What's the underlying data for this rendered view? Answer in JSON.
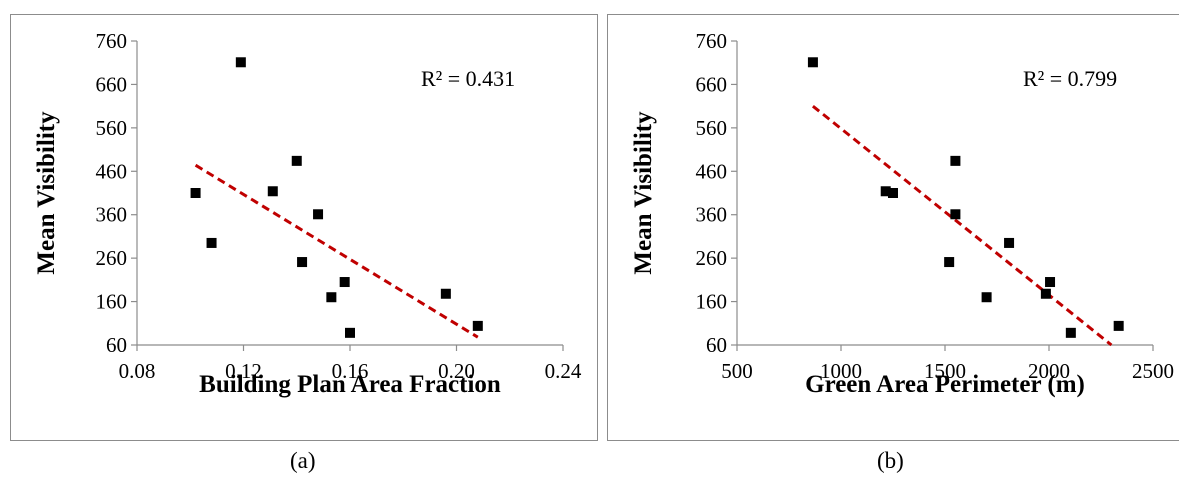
{
  "chart_data": [
    {
      "type": "scatter",
      "xlabel": "Building Plan Area Fraction",
      "ylabel": "Mean Visibility",
      "xlim": [
        0.08,
        0.24
      ],
      "ylim": [
        60,
        760
      ],
      "xticks": [
        "0.08",
        "0.12",
        "0.16",
        "0.20",
        "0.24"
      ],
      "yticks": [
        "760",
        "660",
        "560",
        "460",
        "360",
        "260",
        "160",
        "60"
      ],
      "grid": false,
      "annotation": "R² = 0.431",
      "points": [
        {
          "x": 0.102,
          "y": 410
        },
        {
          "x": 0.108,
          "y": 295
        },
        {
          "x": 0.119,
          "y": 711
        },
        {
          "x": 0.131,
          "y": 414
        },
        {
          "x": 0.14,
          "y": 484
        },
        {
          "x": 0.142,
          "y": 251
        },
        {
          "x": 0.148,
          "y": 361
        },
        {
          "x": 0.153,
          "y": 170
        },
        {
          "x": 0.158,
          "y": 205
        },
        {
          "x": 0.16,
          "y": 88
        },
        {
          "x": 0.196,
          "y": 178
        },
        {
          "x": 0.208,
          "y": 104
        }
      ],
      "trendline": {
        "x": [
          0.102,
          0.208
        ],
        "y": [
          474,
          78
        ]
      },
      "trendline_color": "#c00000",
      "marker_color": "#000000"
    },
    {
      "type": "scatter",
      "xlabel": "Green Area Perimeter (m)",
      "ylabel": "Mean Visibility",
      "xlim": [
        500,
        2500
      ],
      "ylim": [
        60,
        760
      ],
      "xticks": [
        "500",
        "1000",
        "1500",
        "2000",
        "2500"
      ],
      "yticks": [
        "760",
        "660",
        "560",
        "460",
        "360",
        "260",
        "160",
        "60"
      ],
      "grid": false,
      "annotation": "R² = 0.799",
      "points": [
        {
          "x": 865,
          "y": 711
        },
        {
          "x": 1215,
          "y": 414
        },
        {
          "x": 1250,
          "y": 410
        },
        {
          "x": 1550,
          "y": 484
        },
        {
          "x": 1550,
          "y": 361
        },
        {
          "x": 1520,
          "y": 251
        },
        {
          "x": 1700,
          "y": 170
        },
        {
          "x": 1808,
          "y": 295
        },
        {
          "x": 1985,
          "y": 178
        },
        {
          "x": 2005,
          "y": 205
        },
        {
          "x": 2105,
          "y": 88
        },
        {
          "x": 2335,
          "y": 104
        }
      ],
      "trendline": {
        "x": [
          865,
          2300
        ],
        "y": [
          610,
          60
        ]
      },
      "trendline_color": "#c00000",
      "marker_color": "#000000"
    }
  ],
  "captions": [
    "(a)",
    "(b)"
  ]
}
